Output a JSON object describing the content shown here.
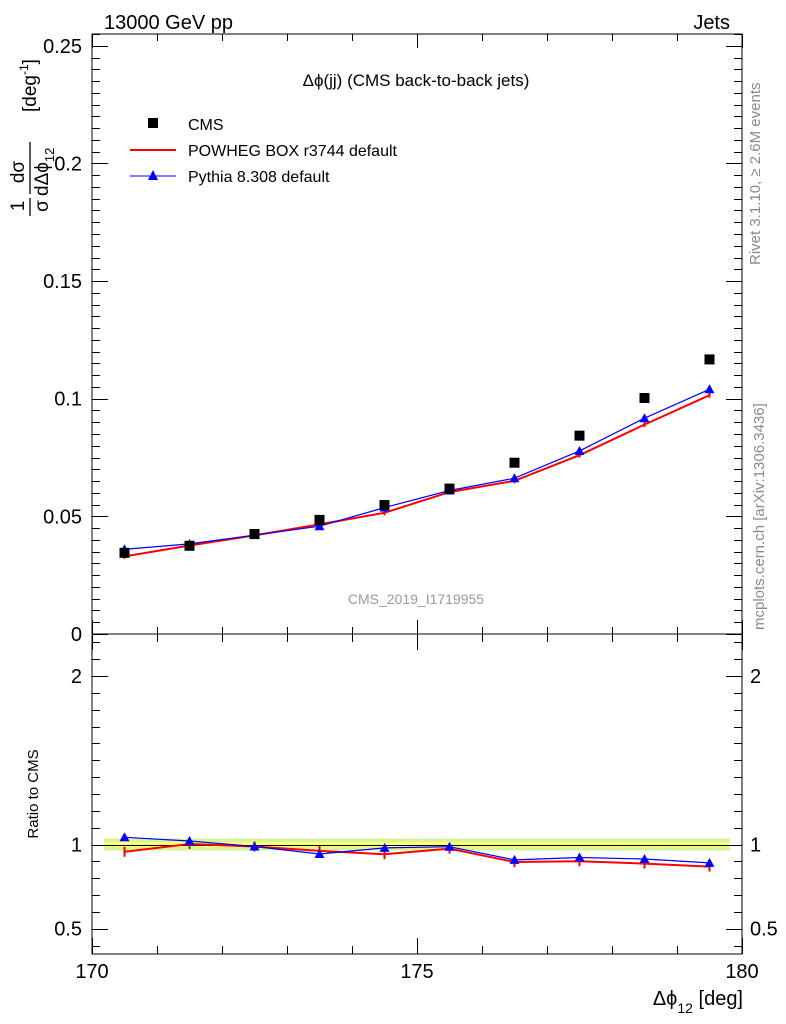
{
  "header": {
    "left": "13000 GeV pp",
    "right": "Jets"
  },
  "side": {
    "rivet": "Rivet 3.1.10, ≥ 2.6M events",
    "mcplots": "mcplots.cern.ch [arXiv:1306.3436]"
  },
  "colors": {
    "cms": "#000000",
    "powheg": "#ff0000",
    "pythia": "#0000ff",
    "band_outer": "#d4f58f",
    "band_inner": "#ffff80"
  },
  "chart_data": [
    {
      "type": "scatter",
      "title": "Δϕ(jj) (CMS back-to-back jets)",
      "watermark": "CMS_2019_I1719955",
      "ylabel_parts": {
        "frac_num": "1",
        "frac_den": "σ",
        "d_num": "dσ",
        "d_den": "dΔϕ",
        "d_den_sub": "12",
        "unit": "[deg",
        "unit_sup": "-1",
        "unit_close": "]"
      },
      "ylim": [
        0,
        0.255
      ],
      "yticks": [
        0,
        0.05,
        0.1,
        0.15,
        0.2,
        0.25
      ],
      "ytick_labels": [
        "0",
        "0.05",
        "0.1",
        "0.15",
        "0.2",
        "0.25"
      ],
      "xlim": [
        170,
        180
      ],
      "x": [
        170.5,
        171.5,
        172.5,
        173.5,
        174.5,
        175.5,
        176.5,
        177.5,
        178.5,
        179.5
      ],
      "series": [
        {
          "name": "CMS",
          "marker": "square",
          "values": [
            0.0345,
            0.0375,
            0.0425,
            0.0485,
            0.0548,
            0.0618,
            0.0728,
            0.0843,
            0.1003,
            0.1167
          ]
        },
        {
          "name": "POWHEG BOX r3744 default",
          "marker": "line",
          "values": [
            0.033,
            0.0376,
            0.0419,
            0.0466,
            0.0515,
            0.0603,
            0.0651,
            0.076,
            0.089,
            0.1015
          ]
        },
        {
          "name": "Pythia 8.308 default",
          "marker": "triangle",
          "values": [
            0.036,
            0.0383,
            0.042,
            0.0458,
            0.0537,
            0.061,
            0.0662,
            0.0778,
            0.0917,
            0.104
          ]
        }
      ],
      "legend_position": "top-left"
    },
    {
      "type": "line",
      "ylabel": "Ratio to CMS",
      "ylim": [
        0.35,
        2.25
      ],
      "yticks": [
        0.5,
        1,
        2
      ],
      "ytick_labels": [
        "0.5",
        "1",
        "2"
      ],
      "xlim": [
        170,
        180
      ],
      "xticks": [
        170,
        175,
        180
      ],
      "xtick_labels": [
        "170",
        "175",
        "180"
      ],
      "xlabel_parts": {
        "main": "Δϕ",
        "sub": "12",
        "unit": " [deg]"
      },
      "x": [
        170.5,
        171.5,
        172.5,
        173.5,
        174.5,
        175.5,
        176.5,
        177.5,
        178.5,
        179.5
      ],
      "band": {
        "outer": [
          0.965,
          1.035
        ],
        "inner": [
          0.985,
          1.015
        ]
      },
      "series": [
        {
          "name": "POWHEG BOX r3744 default",
          "values": [
            0.957,
            1.003,
            0.988,
            0.962,
            0.942,
            0.976,
            0.896,
            0.901,
            0.887,
            0.869
          ]
        },
        {
          "name": "Pythia 8.308 default",
          "values": [
            1.043,
            1.021,
            0.988,
            0.944,
            0.98,
            0.987,
            0.909,
            0.923,
            0.914,
            0.891
          ]
        }
      ]
    }
  ]
}
